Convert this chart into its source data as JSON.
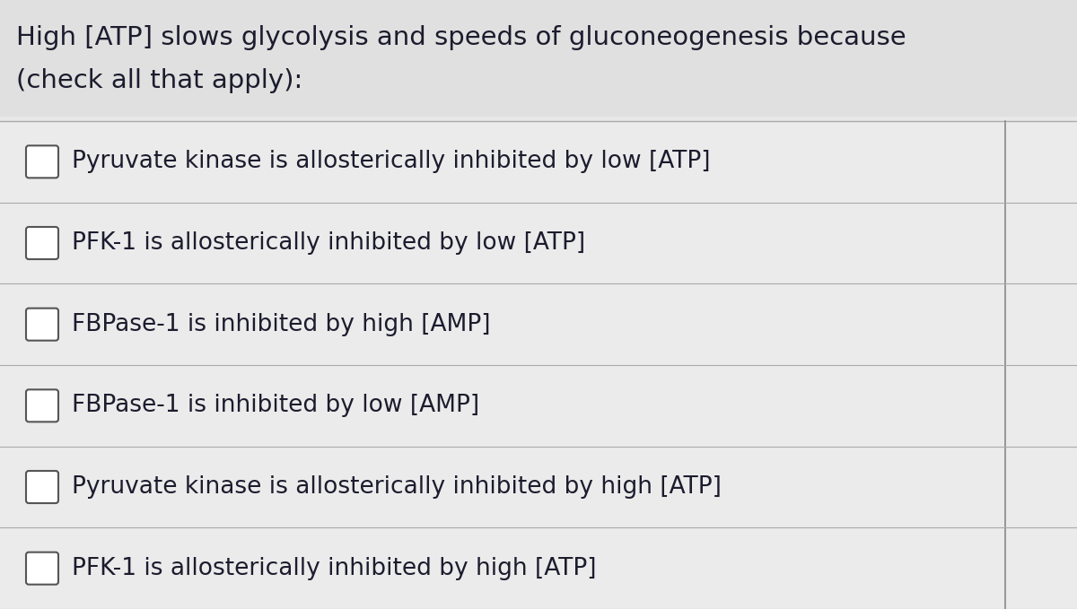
{
  "title_line1": "High [ATP] slows glycolysis and speeds of gluconeogenesis because",
  "title_line2": "(check all that apply):",
  "options": [
    "Pyruvate kinase is allosterically inhibited by low [ATP]",
    "PFK-1 is allosterically inhibited by low [ATP]",
    "FBPase-1 is inhibited by high [AMP]",
    "FBPase-1 is inhibited by low [AMP]",
    "Pyruvate kinase is allosterically inhibited by high [ATP]",
    "PFK-1 is allosterically inhibited by high [ATP]"
  ],
  "background_color": "#e8e8e8",
  "row_bg_color": "#ebebeb",
  "title_bg_color": "#e0e0e0",
  "title_fontsize": 21,
  "option_fontsize": 19,
  "text_color": "#1c1c2e",
  "line_color": "#aaaaaa",
  "right_border_color": "#888888"
}
